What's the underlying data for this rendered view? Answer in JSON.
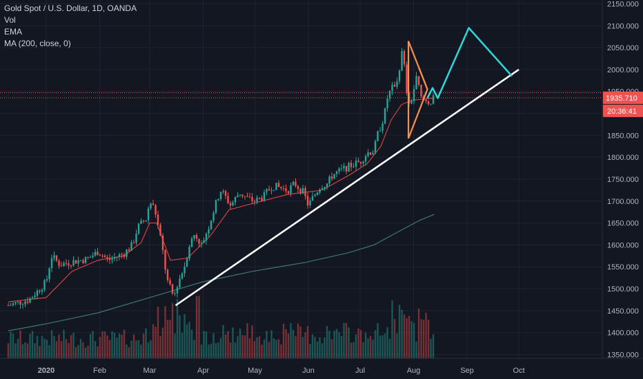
{
  "legend": {
    "symbol": "Gold Spot / U.S. Dollar, 1D, OANDA",
    "vol": "Vol",
    "ema": "EMA",
    "ma": "MA (200, close, 0)"
  },
  "price_badge": {
    "price": "1935.710",
    "countdown": "20:36:41"
  },
  "colors": {
    "background": "#131722",
    "up": "#26a69a",
    "down": "#ef5350",
    "ema": "#e0463f",
    "ma200": "#3b7a70",
    "trendline": "#ffffff",
    "triangle": "#f7924a",
    "projection": "#2fd4d6",
    "badge": "#ef5350"
  },
  "chart_data": {
    "type": "candlestick",
    "symbol": "XAUUSD",
    "timeframe": "1D",
    "y_ticks": [
      "2150.000",
      "2100.000",
      "2050.000",
      "2000.000",
      "1950.000",
      "1900.000",
      "1850.000",
      "1800.000",
      "1750.000",
      "1700.000",
      "1650.000",
      "1600.000",
      "1550.000",
      "1500.000",
      "1450.000",
      "1400.000",
      "1350.000"
    ],
    "ylim": [
      1345,
      2155
    ],
    "x_ticks": [
      {
        "label": "2020",
        "day": 0,
        "bold": true
      },
      {
        "label": "Feb",
        "day": 31
      },
      {
        "label": "Mar",
        "day": 60
      },
      {
        "label": "Apr",
        "day": 91
      },
      {
        "label": "May",
        "day": 121
      },
      {
        "label": "Jun",
        "day": 152
      },
      {
        "label": "Jul",
        "day": 182
      },
      {
        "label": "Aug",
        "day": 213
      },
      {
        "label": "Sep",
        "day": 244
      },
      {
        "label": "Oct",
        "day": 274
      }
    ],
    "price_path": [
      [
        -22,
        1462
      ],
      [
        -10,
        1475
      ],
      [
        0,
        1515
      ],
      [
        3,
        1575
      ],
      [
        8,
        1555
      ],
      [
        15,
        1562
      ],
      [
        24,
        1568
      ],
      [
        30,
        1585
      ],
      [
        36,
        1565
      ],
      [
        45,
        1580
      ],
      [
        50,
        1600
      ],
      [
        53,
        1640
      ],
      [
        58,
        1660
      ],
      [
        60,
        1700
      ],
      [
        63,
        1680
      ],
      [
        67,
        1600
      ],
      [
        70,
        1520
      ],
      [
        74,
        1480
      ],
      [
        76,
        1510
      ],
      [
        80,
        1550
      ],
      [
        83,
        1600
      ],
      [
        86,
        1625
      ],
      [
        90,
        1600
      ],
      [
        94,
        1640
      ],
      [
        98,
        1690
      ],
      [
        101,
        1725
      ],
      [
        103,
        1715
      ],
      [
        107,
        1690
      ],
      [
        112,
        1720
      ],
      [
        117,
        1705
      ],
      [
        121,
        1700
      ],
      [
        126,
        1710
      ],
      [
        131,
        1735
      ],
      [
        136,
        1730
      ],
      [
        140,
        1725
      ],
      [
        144,
        1740
      ],
      [
        149,
        1720
      ],
      [
        152,
        1690
      ],
      [
        155,
        1710
      ],
      [
        159,
        1735
      ],
      [
        163,
        1740
      ],
      [
        166,
        1760
      ],
      [
        171,
        1770
      ],
      [
        176,
        1780
      ],
      [
        182,
        1790
      ],
      [
        186,
        1810
      ],
      [
        190,
        1815
      ],
      [
        192,
        1850
      ],
      [
        196,
        1895
      ],
      [
        198,
        1940
      ],
      [
        201,
        1960
      ],
      [
        204,
        1980
      ],
      [
        206,
        2040
      ],
      [
        207,
        2030
      ],
      [
        210,
        1910
      ],
      [
        212,
        1935
      ],
      [
        214,
        1970
      ],
      [
        215,
        1985
      ],
      [
        217,
        1935
      ],
      [
        219,
        1930
      ],
      [
        222,
        1925
      ],
      [
        225,
        1935
      ]
    ],
    "ema_path": [
      [
        -22,
        1470
      ],
      [
        0,
        1480
      ],
      [
        15,
        1540
      ],
      [
        30,
        1565
      ],
      [
        45,
        1575
      ],
      [
        55,
        1605
      ],
      [
        60,
        1650
      ],
      [
        64,
        1650
      ],
      [
        72,
        1565
      ],
      [
        82,
        1570
      ],
      [
        95,
        1620
      ],
      [
        106,
        1680
      ],
      [
        120,
        1695
      ],
      [
        140,
        1715
      ],
      [
        160,
        1725
      ],
      [
        176,
        1760
      ],
      [
        186,
        1785
      ],
      [
        194,
        1825
      ],
      [
        200,
        1885
      ],
      [
        206,
        1920
      ],
      [
        212,
        1930
      ],
      [
        225,
        1935
      ]
    ],
    "ma200_path": [
      [
        -22,
        1404
      ],
      [
        0,
        1420
      ],
      [
        30,
        1445
      ],
      [
        60,
        1480
      ],
      [
        90,
        1515
      ],
      [
        120,
        1540
      ],
      [
        150,
        1560
      ],
      [
        175,
        1582
      ],
      [
        190,
        1600
      ],
      [
        205,
        1632
      ],
      [
        216,
        1655
      ],
      [
        225,
        1670
      ]
    ],
    "volume_range": [
      0,
      1
    ]
  },
  "drawings": {
    "trendline": {
      "from": {
        "day": 75,
        "price": 1462
      },
      "to": {
        "day": 274,
        "price": 2000
      }
    },
    "triangle": [
      [
        210,
        2065
      ],
      [
        221,
        1955
      ],
      [
        210,
        1843
      ]
    ],
    "triangle_side": [
      [
        216,
        2005
      ],
      [
        221,
        1955
      ]
    ],
    "projection": [
      [
        221,
        1935
      ],
      [
        224,
        1958
      ],
      [
        227,
        1935
      ],
      [
        245,
        2095
      ],
      [
        270,
        1985
      ]
    ]
  }
}
